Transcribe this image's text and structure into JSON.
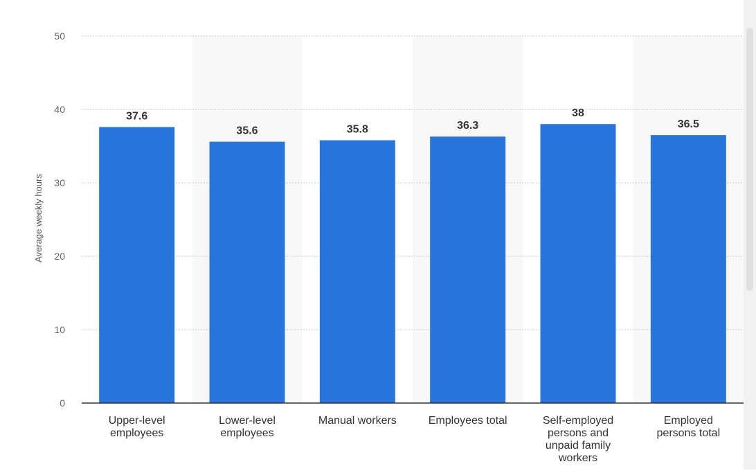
{
  "chart_data": {
    "type": "bar",
    "title": "",
    "xlabel": "",
    "ylabel": "Average weekly hours",
    "ylim": [
      0,
      50
    ],
    "yticks": [
      "0",
      "10",
      "20",
      "30",
      "40",
      "50"
    ],
    "grid": true,
    "categories": [
      "Upper-level employees",
      "Lower-level employees",
      "Manual workers",
      "Employees total",
      "Self-employed persons and unpaid family workers",
      "Employed persons total"
    ],
    "category_label_lines": [
      [
        "Upper-level",
        "employees"
      ],
      [
        "Lower-level",
        "employees"
      ],
      [
        "Manual workers"
      ],
      [
        "Employees total"
      ],
      [
        "Self-employed",
        "persons and",
        "unpaid family",
        "workers"
      ],
      [
        "Employed",
        "persons total"
      ]
    ],
    "values": [
      37.6,
      35.6,
      35.8,
      36.3,
      38,
      36.5
    ],
    "value_labels": [
      "37.6",
      "35.6",
      "35.8",
      "36.3",
      "38",
      "36.5"
    ],
    "bar_color": "#2875dc",
    "band_color": "#f8f8f9"
  }
}
